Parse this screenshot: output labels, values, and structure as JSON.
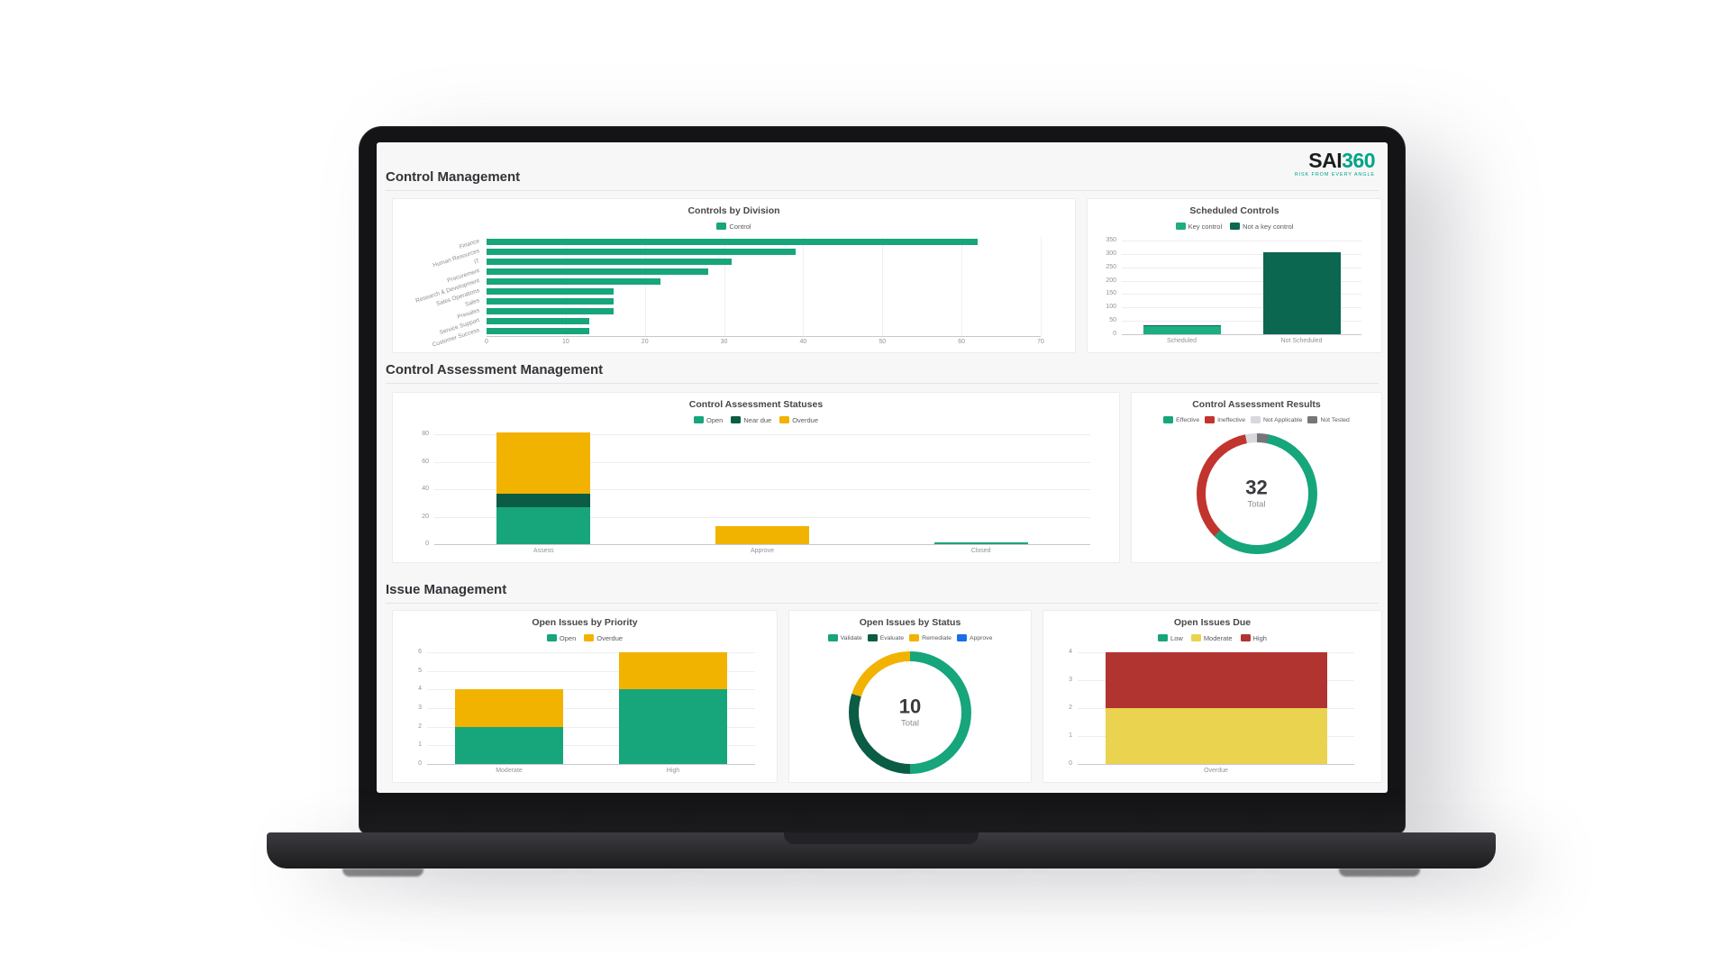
{
  "logo": {
    "brand": "SAI",
    "brand_accent": "360",
    "tagline": "RISK FROM EVERY ANGLE"
  },
  "sections": [
    {
      "title": "Control Management"
    },
    {
      "title": "Control Assessment Management"
    },
    {
      "title": "Issue Management"
    }
  ],
  "chart_data": [
    {
      "id": "controls-by-division",
      "type": "bar",
      "orientation": "horizontal",
      "title": "Controls by Division",
      "legend": [
        {
          "label": "Control",
          "color": "#17a57c"
        }
      ],
      "categories": [
        "Finance",
        "Human Resources",
        "IT",
        "Procurement",
        "Research & Development",
        "Sales Operations",
        "Sales",
        "Presales",
        "Service Support",
        "Customer Success"
      ],
      "series": [
        {
          "name": "Control",
          "color": "#17a57c",
          "values": [
            62,
            39,
            31,
            28,
            22,
            16,
            16,
            16,
            13,
            13
          ]
        }
      ],
      "xlim": [
        0,
        70
      ],
      "ticks": [
        0,
        10,
        20,
        30,
        40,
        50,
        60,
        70
      ],
      "grid": true,
      "legend_position": "top"
    },
    {
      "id": "scheduled-controls",
      "type": "bar",
      "orientation": "vertical",
      "stacked": true,
      "title": "Scheduled Controls",
      "legend": [
        {
          "label": "Key control",
          "color": "#1cad80"
        },
        {
          "label": "Not a key control",
          "color": "#0b6750"
        }
      ],
      "categories": [
        "Scheduled",
        "Not Scheduled"
      ],
      "series": [
        {
          "name": "Key control",
          "color": "#1cad80",
          "values": [
            30,
            0
          ]
        },
        {
          "name": "Not a key control",
          "color": "#0b6750",
          "values": [
            5,
            305
          ]
        }
      ],
      "ylim": [
        0,
        350
      ],
      "ticks": [
        0,
        50,
        100,
        150,
        200,
        250,
        300,
        350
      ],
      "grid": true,
      "legend_position": "top"
    },
    {
      "id": "control-assessment-statuses",
      "type": "bar",
      "orientation": "vertical",
      "stacked": true,
      "title": "Control Assessment Statuses",
      "legend": [
        {
          "label": "Open",
          "color": "#17a57c"
        },
        {
          "label": "Near due",
          "color": "#0a5c44"
        },
        {
          "label": "Overdue",
          "color": "#f2b200"
        }
      ],
      "categories": [
        "Assess",
        "Approve",
        "Closed"
      ],
      "series": [
        {
          "name": "Open",
          "color": "#17a57c",
          "values": [
            27,
            0,
            1
          ]
        },
        {
          "name": "Near due",
          "color": "#0a5c44",
          "values": [
            10,
            0,
            0
          ]
        },
        {
          "name": "Overdue",
          "color": "#f2b200",
          "values": [
            44,
            13,
            0
          ]
        }
      ],
      "ylim": [
        0,
        80
      ],
      "ticks": [
        0,
        20,
        40,
        60,
        80
      ],
      "grid": true,
      "legend_position": "top"
    },
    {
      "id": "control-assessment-results",
      "type": "donut",
      "title": "Control Assessment Results",
      "legend": [
        {
          "label": "Effective",
          "color": "#17a57c"
        },
        {
          "label": "Ineffective",
          "color": "#c2342e"
        },
        {
          "label": "Not Applicable",
          "color": "#d8d8dd"
        },
        {
          "label": "Not Tested",
          "color": "#75757a"
        }
      ],
      "segments": [
        {
          "label": "Not Tested",
          "value": 1,
          "color": "#75757a"
        },
        {
          "label": "Effective",
          "value": 19,
          "color": "#17a57c"
        },
        {
          "label": "Ineffective",
          "value": 11,
          "color": "#c2342e"
        },
        {
          "label": "Not Applicable",
          "value": 1,
          "color": "#d8d8dd"
        }
      ],
      "center_value": "32",
      "center_label": "Total",
      "legend_position": "top"
    },
    {
      "id": "open-issues-by-priority",
      "type": "bar",
      "orientation": "vertical",
      "stacked": true,
      "title": "Open Issues by Priority",
      "legend": [
        {
          "label": "Open",
          "color": "#17a57c"
        },
        {
          "label": "Overdue",
          "color": "#f2b200"
        }
      ],
      "categories": [
        "Moderate",
        "High"
      ],
      "series": [
        {
          "name": "Open",
          "color": "#17a57c",
          "values": [
            2,
            4
          ]
        },
        {
          "name": "Overdue",
          "color": "#f2b200",
          "values": [
            2,
            2
          ]
        }
      ],
      "ylim": [
        0,
        6
      ],
      "ticks": [
        0,
        1,
        2,
        3,
        4,
        5,
        6
      ],
      "grid": true,
      "legend_position": "top"
    },
    {
      "id": "open-issues-by-status",
      "type": "donut",
      "title": "Open Issues by Status",
      "legend": [
        {
          "label": "Validate",
          "color": "#17a57c"
        },
        {
          "label": "Evaluate",
          "color": "#0a5c44"
        },
        {
          "label": "Remediate",
          "color": "#f2b200"
        },
        {
          "label": "Approve",
          "color": "#1a6fe8"
        }
      ],
      "segments": [
        {
          "label": "Validate",
          "value": 5,
          "color": "#17a57c"
        },
        {
          "label": "Evaluate",
          "value": 3,
          "color": "#0a5c44"
        },
        {
          "label": "Remediate",
          "value": 2,
          "color": "#f2b200"
        },
        {
          "label": "Approve",
          "value": 0,
          "color": "#1a6fe8"
        }
      ],
      "center_value": "10",
      "center_label": "Total",
      "legend_position": "top"
    },
    {
      "id": "open-issues-due",
      "type": "bar",
      "orientation": "vertical",
      "stacked": true,
      "title": "Open Issues Due",
      "legend": [
        {
          "label": "Low",
          "color": "#17a57c"
        },
        {
          "label": "Moderate",
          "color": "#ead34f"
        },
        {
          "label": "High",
          "color": "#b23431"
        }
      ],
      "categories": [
        "Overdue"
      ],
      "series": [
        {
          "name": "Low",
          "color": "#17a57c",
          "values": [
            0
          ]
        },
        {
          "name": "Moderate",
          "color": "#ead34f",
          "values": [
            2
          ]
        },
        {
          "name": "High",
          "color": "#b23431",
          "values": [
            2
          ]
        }
      ],
      "ylim": [
        0,
        4
      ],
      "ticks": [
        0,
        1,
        2,
        3,
        4
      ],
      "grid": true,
      "legend_position": "top"
    }
  ]
}
